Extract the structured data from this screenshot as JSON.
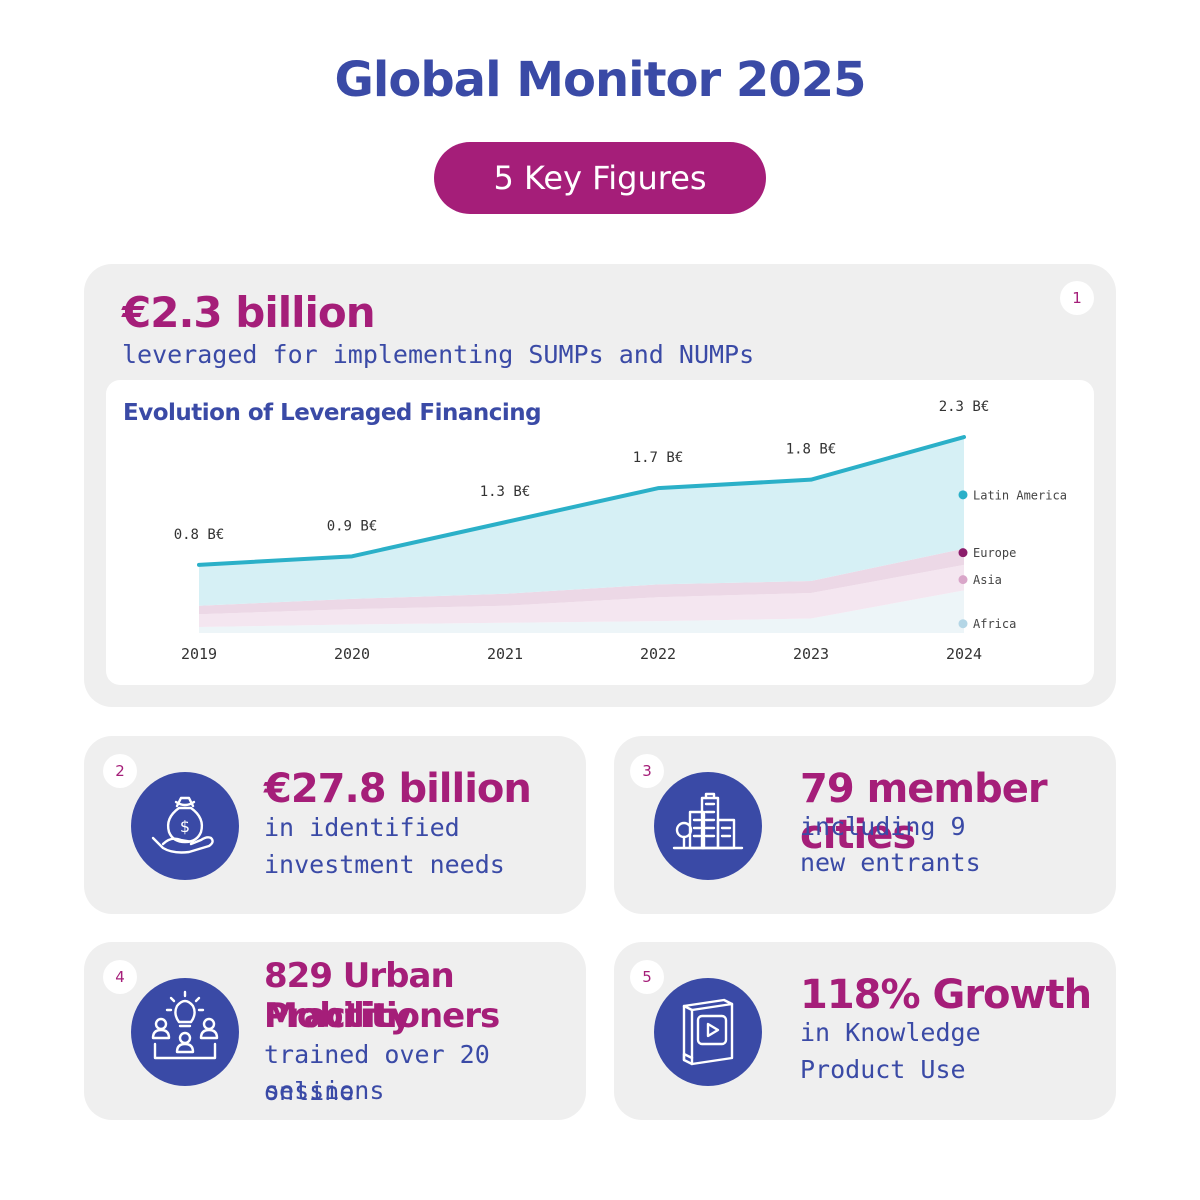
{
  "header": {
    "title": "Global Monitor 2025",
    "subtitle_pill": "5 Key Figures"
  },
  "card1": {
    "number": "1",
    "headline": "€2.3 billion",
    "text": "leveraged for implementing SUMPs and NUMPs"
  },
  "chart_data": {
    "type": "area",
    "title": "Evolution of Leveraged Financing",
    "x": [
      "2019",
      "2020",
      "2021",
      "2022",
      "2023",
      "2024"
    ],
    "total_labels": [
      "0.8 B€",
      "0.9 B€",
      "1.3 B€",
      "1.7 B€",
      "1.8 B€",
      "2.3 B€"
    ],
    "totals": [
      0.8,
      0.9,
      1.3,
      1.7,
      1.8,
      2.3
    ],
    "series": [
      {
        "name": "Africa",
        "values": [
          0.07,
          0.1,
          0.12,
          0.14,
          0.17,
          0.5
        ]
      },
      {
        "name": "Asia",
        "values": [
          0.15,
          0.18,
          0.2,
          0.28,
          0.3,
          0.3
        ]
      },
      {
        "name": "Europe",
        "values": [
          0.1,
          0.12,
          0.14,
          0.15,
          0.14,
          0.19
        ]
      },
      {
        "name": "Latin America",
        "values": [
          0.48,
          0.5,
          0.84,
          1.13,
          1.19,
          1.31
        ]
      }
    ],
    "legend_order": [
      "Latin America",
      "Europe",
      "Asia",
      "Africa"
    ],
    "colors": {
      "Latin America": "#2bb0c8",
      "Europe": "#8c1d6b",
      "Asia": "#d9a6c9",
      "Africa": "#b4d6e6"
    },
    "fills": {
      "Latin America": "#d6f0f5",
      "Europe": "#ecd8e6",
      "Asia": "#f4e6f0",
      "Africa": "#edf5f8"
    },
    "ylim": [
      0,
      2.5
    ],
    "legend_position": "right"
  },
  "card2": {
    "number": "2",
    "icon": "money-bag-hand-icon",
    "headline": "€27.8 billion",
    "line1": "in identified",
    "line2": "investment needs"
  },
  "card3": {
    "number": "3",
    "icon": "city-buildings-icon",
    "headline": "79 member cities",
    "line1": "including 9",
    "line2": "new entrants"
  },
  "card4": {
    "number": "4",
    "icon": "idea-group-icon",
    "headline_line1": "829 Urban Mobility",
    "headline_line2": "Practitioners",
    "line1": "trained over 20 online",
    "line2": "sessions"
  },
  "card5": {
    "number": "5",
    "icon": "video-book-icon",
    "headline": "118% Growth",
    "line1": "in Knowledge",
    "line2": "Product Use"
  }
}
